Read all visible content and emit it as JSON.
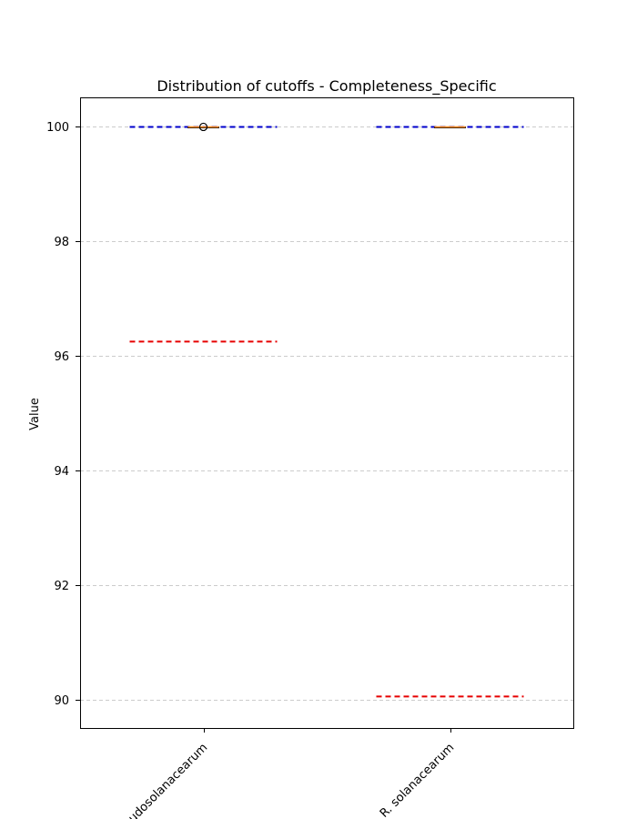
{
  "chart_data": {
    "type": "box",
    "title": "Distribution of cutoffs - Completeness_Specific",
    "xlabel": "",
    "ylabel": "Value",
    "ylim": [
      89.5,
      100.5
    ],
    "yticks": [
      90,
      92,
      94,
      96,
      98,
      100
    ],
    "grid": "y-dashed",
    "categories": [
      "R. pseudosolanacearum",
      "R. solanacearum"
    ],
    "boxes": [
      {
        "median": 100.0,
        "q1": 100.0,
        "q3": 100.0,
        "whisker_low": 100.0,
        "whisker_high": 100.0,
        "outliers": [
          100.0
        ]
      },
      {
        "median": 100.0,
        "q1": 100.0,
        "q3": 100.0,
        "whisker_low": 100.0,
        "whisker_high": 100.0,
        "outliers": []
      }
    ],
    "reference_lines": [
      {
        "color": "#0000cc",
        "values": [
          100.0,
          100.0
        ]
      },
      {
        "color": "#e60000",
        "values": [
          96.25,
          90.05
        ]
      }
    ],
    "colors": {
      "median": "#ff8c1a",
      "blue_line": "#0000cc",
      "red_line": "#e60000",
      "grid": "#cccccc"
    }
  }
}
